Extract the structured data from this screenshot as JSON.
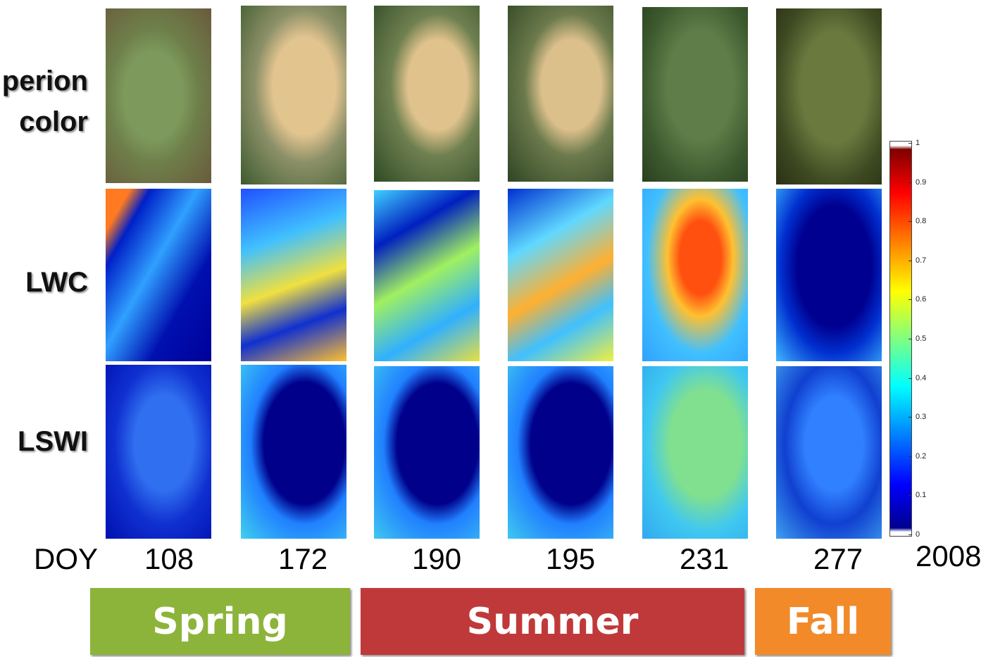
{
  "rows": [
    {
      "label": [
        "perion",
        "color"
      ]
    },
    {
      "label": [
        "LWC"
      ]
    },
    {
      "label": [
        "LSWI"
      ]
    }
  ],
  "doy_label": "DOY",
  "doys": [
    108,
    172,
    190,
    195,
    231,
    277
  ],
  "year": "2008",
  "seasons": [
    {
      "name": "Spring",
      "color": "#8db43a"
    },
    {
      "name": "Summer",
      "color": "#c0393a"
    },
    {
      "name": "Fall",
      "color": "#f28a2a"
    }
  ],
  "colorbar": {
    "ticks": [
      0,
      0.1,
      0.2,
      0.3,
      0.4,
      0.5,
      0.6,
      0.7,
      0.8,
      0.9,
      1
    ]
  }
}
